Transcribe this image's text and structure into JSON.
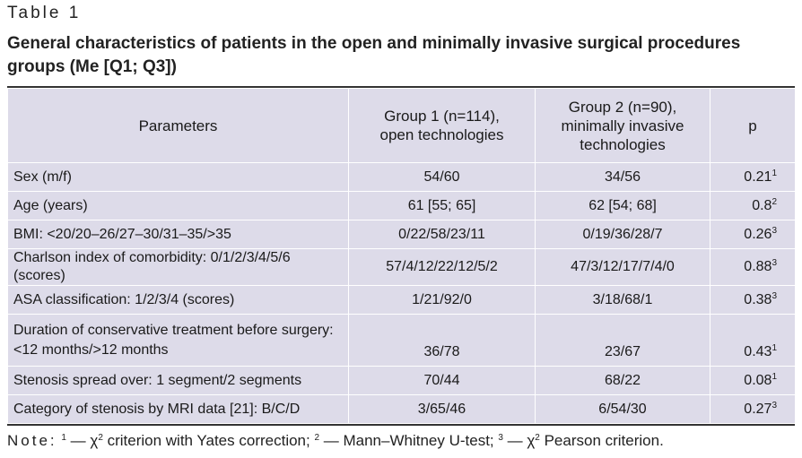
{
  "table_label": "Table 1",
  "caption": "General characteristics of patients in the open and minimally invasive surgical procedures groups (Me [Q1; Q3])",
  "headers": {
    "parameters": "Parameters",
    "group1_line1": "Group 1 (n=114),",
    "group1_line2": "open technologies",
    "group2_line1": "Group 2 (n=90),",
    "group2_line2": "minimally invasive",
    "group2_line3": "technologies",
    "p": "p"
  },
  "rows": [
    {
      "param": "Sex (m/f)",
      "g1": "54/60",
      "g2": "34/56",
      "p": "0.21",
      "sup": "1"
    },
    {
      "param": "Age (years)",
      "g1": "61 [55; 65]",
      "g2": "62 [54; 68]",
      "p": "0.8",
      "sup": "2"
    },
    {
      "param": "BMI: <20/20–26/27–30/31–35/>35",
      "g1": "0/22/58/23/11",
      "g2": "0/19/36/28/7",
      "p": "0.26",
      "sup": "3"
    },
    {
      "param": "Charlson index of comorbidity: 0/1/2/3/4/5/6 (scores)",
      "g1": "57/4/12/22/12/5/2",
      "g2": "47/3/12/17/7/4/0",
      "p": "0.88",
      "sup": "3"
    },
    {
      "param": "ASA classification: 1/2/3/4 (scores)",
      "g1": "1/21/92/0",
      "g2": "3/18/68/1",
      "p": "0.38",
      "sup": "3"
    },
    {
      "param_line1": "Duration of conservative treatment before surgery:",
      "param_line2": "<12 months/>12 months",
      "g1": "36/78",
      "g2": "23/67",
      "p": "0.43",
      "sup": "1"
    },
    {
      "param": "Stenosis spread over: 1 segment/2 segments",
      "g1": "70/44",
      "g2": "68/22",
      "p": "0.08",
      "sup": "1"
    },
    {
      "param": "Category of stenosis by MRI data [21]: B/C/D",
      "g1": "3/65/46",
      "g2": "6/54/30",
      "p": "0.27",
      "sup": "3"
    }
  ],
  "note": {
    "label": "Note:",
    "m1": "1",
    "t1": " — χ",
    "m2": "2",
    "t2": " criterion with Yates correction; ",
    "m3": "2",
    "t3": " — Mann–Whitney U-test; ",
    "m4": "3",
    "t4": " — χ",
    "m5": "2",
    "t5": " Pearson criterion."
  }
}
